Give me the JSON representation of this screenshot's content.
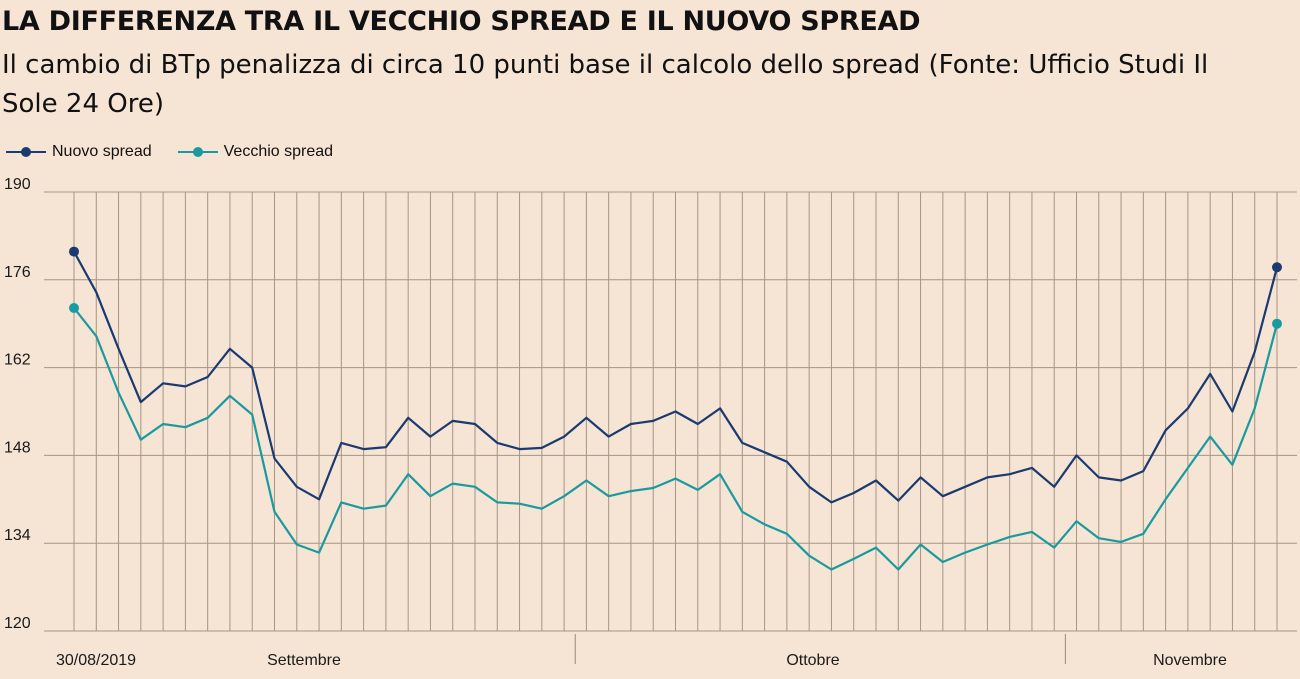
{
  "chart_data": {
    "type": "line",
    "title": "LA DIFFERENZA TRA IL VECCHIO SPREAD E IL NUOVO SPREAD",
    "subtitle": "Il cambio di BTp penalizza di circa 10 punti base il calcolo dello spread (Fonte: Ufficio Studi Il Sole 24 Ore)",
    "ylim": [
      120,
      190
    ],
    "yticks": [
      190,
      176,
      162,
      148,
      134,
      120
    ],
    "x_labels": [
      "30/08/2019",
      "Settembre",
      "Ottobre",
      "Novembre"
    ],
    "grid": true,
    "legend": "top-left",
    "series": [
      {
        "name": "Nuovo spread",
        "color": "#1a3a70",
        "values": [
          180.5,
          174.0,
          165.0,
          156.5,
          159.5,
          159.0,
          160.5,
          165.0,
          162.0,
          147.5,
          143.0,
          141.0,
          150.0,
          149.0,
          149.3,
          154.0,
          151.0,
          153.5,
          153.0,
          150.0,
          149.0,
          149.2,
          151.0,
          154.0,
          151.0,
          153.0,
          153.5,
          155.0,
          153.0,
          155.5,
          150.0,
          148.5,
          147.0,
          143.0,
          140.5,
          142.0,
          144.0,
          140.8,
          144.5,
          141.5,
          143.0,
          144.5,
          145.0,
          146.0,
          143.0,
          148.0,
          144.5,
          144.0,
          145.5,
          152.0,
          155.5,
          161.0,
          155.0,
          164.5,
          178.0
        ]
      },
      {
        "name": "Vecchio spread",
        "color": "#1a9a9e",
        "values": [
          171.5,
          167.0,
          158.0,
          150.5,
          153.0,
          152.5,
          154.0,
          157.5,
          154.5,
          139.0,
          133.8,
          132.5,
          140.5,
          139.5,
          140.0,
          145.0,
          141.5,
          143.5,
          143.0,
          140.5,
          140.3,
          139.5,
          141.5,
          144.0,
          141.5,
          142.3,
          142.8,
          144.3,
          142.5,
          145.0,
          139.0,
          137.0,
          135.5,
          132.0,
          129.8,
          131.5,
          133.3,
          129.8,
          133.8,
          131.0,
          132.5,
          133.8,
          135.0,
          135.8,
          133.3,
          137.5,
          134.8,
          134.2,
          135.5,
          141.0,
          146.0,
          151.0,
          146.5,
          155.5,
          169.0
        ]
      }
    ]
  }
}
